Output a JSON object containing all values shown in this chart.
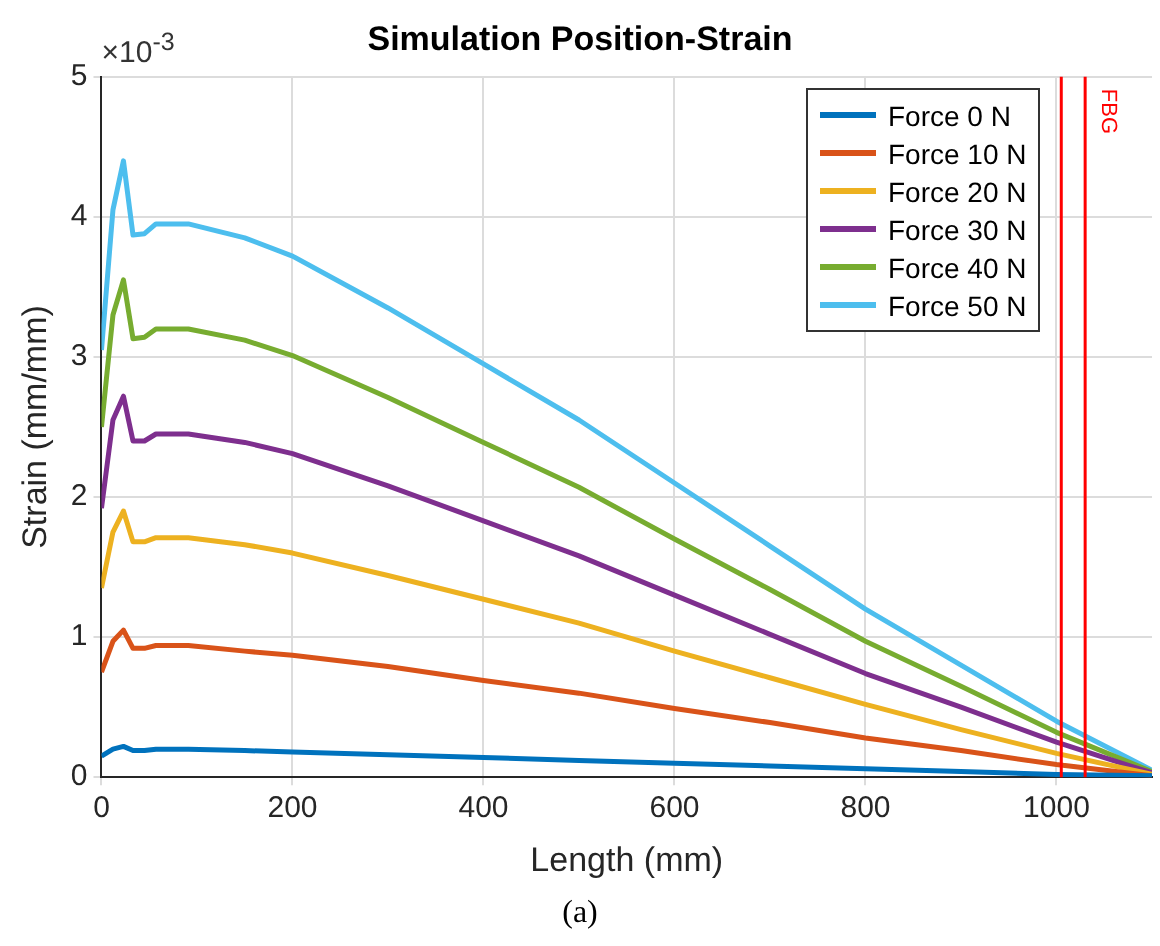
{
  "chart_data": {
    "type": "line",
    "title": "Simulation Position-Strain",
    "xlabel": "Length (mm)",
    "ylabel": "Strain (mm/mm)",
    "annotations": [
      "×10$^{-3}$",
      "(a)"
    ],
    "xlim": [
      0,
      1100
    ],
    "xticks": [
      0,
      200,
      400,
      600,
      800,
      1000
    ],
    "ylim": [
      0,
      5
    ],
    "yticks": [
      0,
      1,
      2,
      3,
      4,
      5
    ],
    "grid": true,
    "legend": "top right",
    "marker": "none",
    "line_style": "solid",
    "x": [
      0,
      12,
      23,
      33,
      45,
      57,
      91,
      150,
      200,
      300,
      400,
      500,
      600,
      700,
      800,
      900,
      1000,
      1100
    ],
    "series": [
      {
        "name": "Force 0 N",
        "color": "#0072bd",
        "values": [
          0.15,
          0.2,
          0.22,
          0.19,
          0.19,
          0.2,
          0.2,
          0.19,
          0.18,
          0.16,
          0.14,
          0.12,
          0.1,
          0.08,
          0.06,
          0.04,
          0.02,
          0.01
        ]
      },
      {
        "name": "Force 10 N",
        "color": "#d95319",
        "values": [
          0.75,
          0.97,
          1.05,
          0.92,
          0.92,
          0.94,
          0.94,
          0.9,
          0.87,
          0.79,
          0.69,
          0.6,
          0.49,
          0.39,
          0.28,
          0.19,
          0.09,
          0.01
        ]
      },
      {
        "name": "Force 20 N",
        "color": "#edb120",
        "values": [
          1.35,
          1.75,
          1.9,
          1.68,
          1.68,
          1.71,
          1.71,
          1.66,
          1.6,
          1.44,
          1.27,
          1.1,
          0.9,
          0.71,
          0.52,
          0.34,
          0.17,
          0.02
        ]
      },
      {
        "name": "Force 30 N",
        "color": "#7e2f8e",
        "values": [
          1.92,
          2.55,
          2.72,
          2.4,
          2.4,
          2.45,
          2.45,
          2.39,
          2.31,
          2.08,
          1.83,
          1.58,
          1.3,
          1.02,
          0.74,
          0.5,
          0.25,
          0.03
        ]
      },
      {
        "name": "Force 40 N",
        "color": "#77ac30",
        "values": [
          2.5,
          3.3,
          3.55,
          3.13,
          3.14,
          3.2,
          3.2,
          3.12,
          3.01,
          2.71,
          2.39,
          2.07,
          1.7,
          1.34,
          0.97,
          0.65,
          0.32,
          0.04
        ]
      },
      {
        "name": "Force 50 N",
        "color": "#4dbeee",
        "values": [
          3.05,
          4.05,
          4.4,
          3.87,
          3.88,
          3.95,
          3.95,
          3.85,
          3.72,
          3.35,
          2.95,
          2.55,
          2.1,
          1.65,
          1.2,
          0.8,
          0.4,
          0.05
        ]
      }
    ],
    "ref_lines": [
      {
        "axis": "x",
        "value": 1005,
        "color": "#ff0000"
      },
      {
        "axis": "x",
        "value": 1030,
        "label": "FBG",
        "color": "#ff0000"
      }
    ]
  }
}
